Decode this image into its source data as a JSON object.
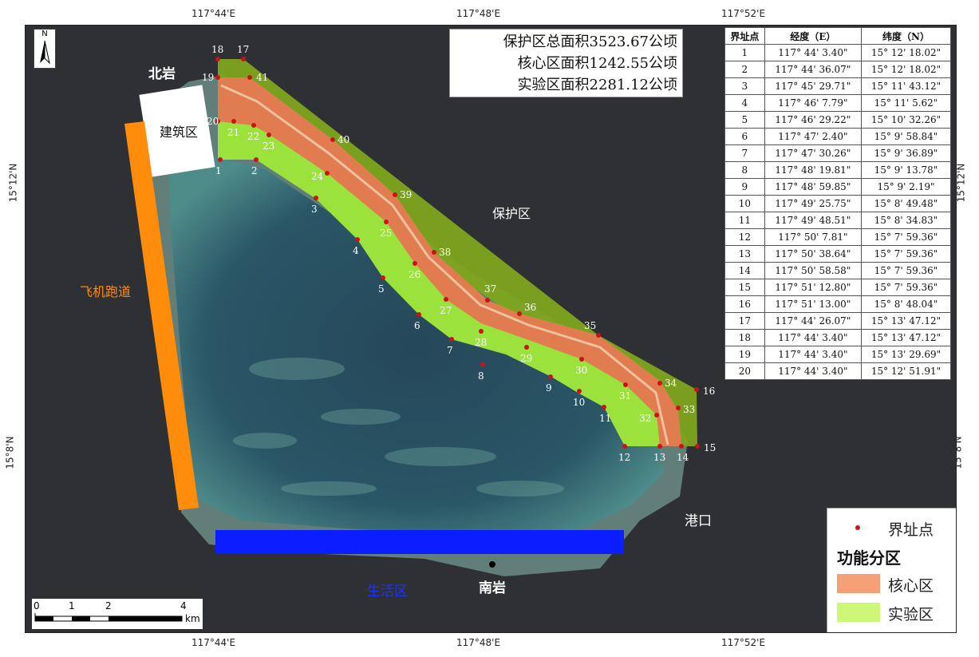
{
  "coords": {
    "top": [
      "117°44'E",
      "117°48'E",
      "117°52'E"
    ],
    "bottom": [
      "117°44'E",
      "117°48'E",
      "117°52'E"
    ],
    "left": [
      "15°12'N",
      "15°8'N"
    ],
    "right": [
      "15°12'N",
      "15°8'N"
    ]
  },
  "areas": {
    "total": "保护区总面积3523.67公顷",
    "core": "核心区面积1242.55公顷",
    "experiment": "实验区面积2281.12公顷"
  },
  "table": {
    "headers": [
      "界址点",
      "经度（E）",
      "纬度（N）"
    ],
    "rows": [
      [
        "1",
        "117° 44' 3.40\"",
        "15° 12' 18.02\""
      ],
      [
        "2",
        "117° 44' 36.07\"",
        "15° 12' 18.02\""
      ],
      [
        "3",
        "117° 45' 29.71\"",
        "15° 11' 43.12\""
      ],
      [
        "4",
        "117° 46' 7.79\"",
        "15° 11' 5.62\""
      ],
      [
        "5",
        "117° 46' 29.22\"",
        "15° 10' 32.26\""
      ],
      [
        "6",
        "117° 47' 2.40\"",
        "15° 9' 58.84\""
      ],
      [
        "7",
        "117° 47' 30.26\"",
        "15° 9' 36.89\""
      ],
      [
        "8",
        "117° 48' 19.81\"",
        "15° 9' 13.78\""
      ],
      [
        "9",
        "117° 48' 59.85\"",
        "15° 9' 2.19\""
      ],
      [
        "10",
        "117° 49' 25.75\"",
        "15° 8' 49.48\""
      ],
      [
        "11",
        "117° 49' 48.51\"",
        "15° 8' 34.83\""
      ],
      [
        "12",
        "117° 50' 7.81\"",
        "15° 7' 59.36\""
      ],
      [
        "13",
        "117° 50' 38.64\"",
        "15° 7' 59.36\""
      ],
      [
        "14",
        "117° 50' 58.58\"",
        "15° 7' 59.36\""
      ],
      [
        "15",
        "117° 51' 12.80\"",
        "15° 7' 59.36\""
      ],
      [
        "16",
        "117° 51' 13.00\"",
        "15° 8' 48.04\""
      ],
      [
        "17",
        "117° 44' 26.07\"",
        "15° 13' 47.12\""
      ],
      [
        "18",
        "117° 44' 3.40\"",
        "15° 13' 47.12\""
      ],
      [
        "19",
        "117° 44' 3.40\"",
        "15° 13' 29.69\""
      ],
      [
        "20",
        "117° 44' 3.40\"",
        "15° 12' 51.91\""
      ]
    ]
  },
  "labels": {
    "north_rock": "北岩",
    "south_rock": "南岩",
    "building": "建筑区",
    "runway": "飞机跑道",
    "living": "生活区",
    "harbor": "港口",
    "protected": "保护区",
    "north_letter": "N"
  },
  "legend": {
    "point": "界址点",
    "title": "功能分区",
    "core": "核心区",
    "experiment": "实验区"
  },
  "scale": {
    "ticks": [
      "0",
      "1",
      "2",
      "4"
    ],
    "unit": "km"
  },
  "colors": {
    "protected_zone": "#7ea51f",
    "core_zone": "#e07c4f",
    "experiment_zone": "#9be23c",
    "runway": "#ff8c0a",
    "living": "#0a1eff",
    "boundary_point": "#c81414",
    "sea": "#2f3033"
  },
  "points": [
    "1",
    "2",
    "3",
    "4",
    "5",
    "6",
    "7",
    "8",
    "9",
    "10",
    "11",
    "12",
    "13",
    "14",
    "15",
    "16",
    "17",
    "18",
    "19",
    "20",
    "21",
    "22",
    "23",
    "24",
    "25",
    "26",
    "27",
    "28",
    "29",
    "30",
    "31",
    "32",
    "33",
    "34",
    "35",
    "36",
    "37",
    "38",
    "39",
    "40",
    "41"
  ]
}
